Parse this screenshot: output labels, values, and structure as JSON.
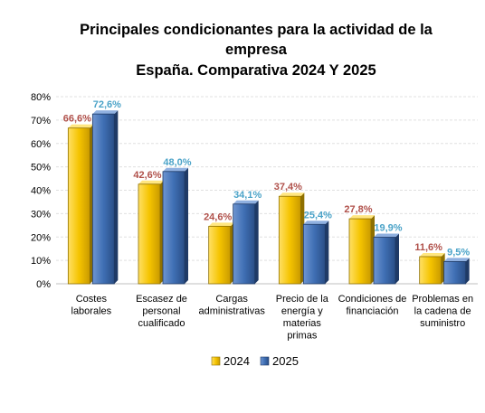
{
  "chart_data": {
    "type": "bar",
    "title": [
      "Principales condicionantes para la actividad de la",
      "empresa",
      "España. Comparativa 2024 Y 2025"
    ],
    "categories": [
      [
        "Costes",
        "laborales"
      ],
      [
        "Escasez de",
        "personal",
        "cualificado"
      ],
      [
        "Cargas",
        "administrativas"
      ],
      [
        "Precio de la",
        "energía y",
        "materias",
        "primas"
      ],
      [
        "Condiciones de",
        "financiación"
      ],
      [
        "Problemas en",
        "la cadena de",
        "suministro"
      ]
    ],
    "series": [
      {
        "name": "2024",
        "values": [
          66.6,
          42.6,
          24.6,
          37.4,
          27.8,
          11.6
        ],
        "labels": [
          "66,6%",
          "42,6%",
          "24,6%",
          "37,4%",
          "27,8%",
          "11,6%"
        ],
        "color": "#F5C400",
        "label_color": "#B0504A"
      },
      {
        "name": "2025",
        "values": [
          72.6,
          48.0,
          34.1,
          25.4,
          19.9,
          9.5
        ],
        "labels": [
          "72,6%",
          "48,0%",
          "34,1%",
          "25,4%",
          "19,9%",
          "9,5%"
        ],
        "color": "#3F6FB4",
        "label_color": "#4BA3C8"
      }
    ],
    "ylim": [
      0,
      80
    ],
    "yticks": [
      "0%",
      "10%",
      "20%",
      "30%",
      "40%",
      "50%",
      "60%",
      "70%",
      "80%"
    ],
    "grid": true,
    "legend": "bottom"
  }
}
